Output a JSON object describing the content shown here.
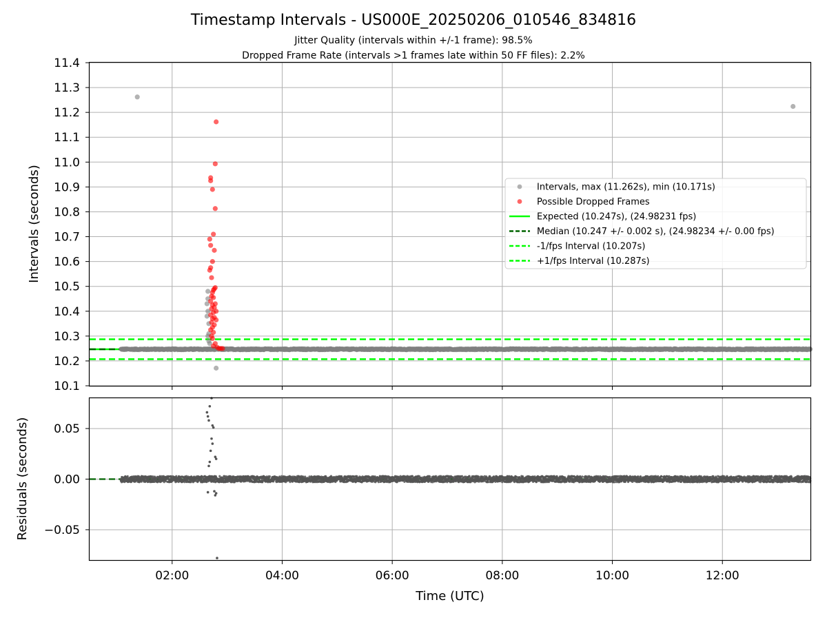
{
  "figure": {
    "title": "Timestamp Intervals - US000E_20250206_010546_834816",
    "subtitle_1": "Jitter Quality (intervals within +/-1 frame): 98.5%",
    "subtitle_2": "Dropped Frame Rate (intervals >1 frames late within 50 FF files): 2.2%"
  },
  "colors": {
    "intervals": "#808080",
    "dropped": "#ff0000",
    "expected": "#00ff00",
    "median": "#006400",
    "fps_band": "#00ff00",
    "residuals": "#555555",
    "grid": "#b0b0b0"
  },
  "chart_data": [
    {
      "type": "scatter",
      "panel": "intervals",
      "xlabel": "",
      "ylabel": "Intervals (seconds)",
      "xlim": [
        "00:30",
        "13:36"
      ],
      "ylim": [
        10.1,
        11.4
      ],
      "yticks": [
        "10.1",
        "10.2",
        "10.3",
        "10.4",
        "10.5",
        "10.6",
        "10.7",
        "10.8",
        "10.9",
        "11.0",
        "11.1",
        "11.2",
        "11.3",
        "11.4"
      ],
      "grid": true,
      "legend_position": "center-right",
      "legend": [
        "Intervals, max (11.262s), min (10.171s)",
        "Possible Dropped Frames",
        "Expected (10.247s), (24.98231 fps)",
        "Median (10.247 +/- 0.002 s), (24.98234 +/- 0.00 fps)",
        "-1/fps Interval (10.207s)",
        "+1/fps Interval (10.287s)"
      ],
      "reference_lines": {
        "expected": 10.247,
        "median": 10.247,
        "minus_1fps": 10.207,
        "plus_1fps": 10.287
      },
      "series": [
        {
          "name": "Intervals, max (11.262s), min (10.171s)",
          "x_range": [
            "01:04",
            "13:36"
          ],
          "typical_y": 10.247,
          "spread": 0.003,
          "points": [
            {
              "x": "01:22",
              "y": 11.262
            },
            {
              "x": "13:17",
              "y": 11.224
            },
            {
              "x": "02:48",
              "y": 10.171
            },
            {
              "x": "02:39",
              "y": 10.48
            },
            {
              "x": "02:39",
              "y": 10.45
            },
            {
              "x": "02:38",
              "y": 10.43
            },
            {
              "x": "02:39",
              "y": 10.4
            },
            {
              "x": "02:38",
              "y": 10.38
            },
            {
              "x": "02:40",
              "y": 10.35
            },
            {
              "x": "02:40",
              "y": 10.31
            },
            {
              "x": "02:39",
              "y": 10.3
            },
            {
              "x": "02:40",
              "y": 10.28
            },
            {
              "x": "02:41",
              "y": 10.27
            }
          ]
        },
        {
          "name": "Possible Dropped Frames",
          "points": [
            {
              "x": "02:48",
              "y": 11.162
            },
            {
              "x": "02:47",
              "y": 10.993
            },
            {
              "x": "02:42",
              "y": 10.937
            },
            {
              "x": "02:42",
              "y": 10.925
            },
            {
              "x": "02:44",
              "y": 10.89
            },
            {
              "x": "02:47",
              "y": 10.813
            },
            {
              "x": "02:45",
              "y": 10.71
            },
            {
              "x": "02:41",
              "y": 10.69
            },
            {
              "x": "02:42",
              "y": 10.665
            },
            {
              "x": "02:46",
              "y": 10.645
            },
            {
              "x": "02:44",
              "y": 10.6
            },
            {
              "x": "02:42",
              "y": 10.575
            },
            {
              "x": "02:41",
              "y": 10.565
            },
            {
              "x": "02:43",
              "y": 10.535
            },
            {
              "x": "02:47",
              "y": 10.495
            },
            {
              "x": "02:46",
              "y": 10.49
            },
            {
              "x": "02:45",
              "y": 10.485
            },
            {
              "x": "02:44",
              "y": 10.475
            },
            {
              "x": "02:43",
              "y": 10.46
            },
            {
              "x": "02:45",
              "y": 10.455
            },
            {
              "x": "02:42",
              "y": 10.44
            },
            {
              "x": "02:47",
              "y": 10.43
            },
            {
              "x": "02:44",
              "y": 10.425
            },
            {
              "x": "02:46",
              "y": 10.415
            },
            {
              "x": "02:43",
              "y": 10.41
            },
            {
              "x": "02:48",
              "y": 10.4
            },
            {
              "x": "02:45",
              "y": 10.395
            },
            {
              "x": "02:42",
              "y": 10.385
            },
            {
              "x": "02:46",
              "y": 10.375
            },
            {
              "x": "02:44",
              "y": 10.37
            },
            {
              "x": "02:48",
              "y": 10.365
            },
            {
              "x": "02:43",
              "y": 10.355
            },
            {
              "x": "02:46",
              "y": 10.345
            },
            {
              "x": "02:44",
              "y": 10.335
            },
            {
              "x": "02:42",
              "y": 10.325
            },
            {
              "x": "02:45",
              "y": 10.315
            },
            {
              "x": "02:43",
              "y": 10.3
            },
            {
              "x": "02:44",
              "y": 10.29
            },
            {
              "x": "02:47",
              "y": 10.27
            },
            {
              "x": "02:45",
              "y": 10.26
            },
            {
              "x": "02:49",
              "y": 10.255
            },
            {
              "x": "02:51",
              "y": 10.25
            },
            {
              "x": "02:53",
              "y": 10.25
            },
            {
              "x": "02:55",
              "y": 10.25
            }
          ]
        }
      ]
    },
    {
      "type": "scatter",
      "panel": "residuals",
      "xlabel": "Time (UTC)",
      "ylabel": "Residuals (seconds)",
      "xlim": [
        "00:30",
        "13:36"
      ],
      "ylim": [
        -0.08,
        0.08
      ],
      "xticks": [
        "02:00",
        "04:00",
        "06:00",
        "08:00",
        "10:00",
        "12:00"
      ],
      "yticks": [
        "0.05",
        "0.00",
        "−0.05"
      ],
      "grid": true,
      "reference_lines": {
        "median": 0.0
      },
      "series": [
        {
          "name": "",
          "x_range": [
            "01:04",
            "13:36"
          ],
          "typical_y": 0.0,
          "spread": 0.003,
          "points": [
            {
              "x": "02:38",
              "y": 0.066
            },
            {
              "x": "02:39",
              "y": 0.062
            },
            {
              "x": "02:40",
              "y": 0.058
            },
            {
              "x": "02:41",
              "y": 0.072
            },
            {
              "x": "02:43",
              "y": 0.08
            },
            {
              "x": "02:44",
              "y": 0.053
            },
            {
              "x": "02:43",
              "y": 0.04
            },
            {
              "x": "02:44",
              "y": 0.035
            },
            {
              "x": "02:45",
              "y": 0.051
            },
            {
              "x": "02:42",
              "y": 0.028
            },
            {
              "x": "02:47",
              "y": 0.022
            },
            {
              "x": "02:48",
              "y": 0.02
            },
            {
              "x": "02:40",
              "y": 0.013
            },
            {
              "x": "02:41",
              "y": 0.017
            },
            {
              "x": "02:39",
              "y": -0.013
            },
            {
              "x": "02:46",
              "y": -0.012
            },
            {
              "x": "02:47",
              "y": -0.016
            },
            {
              "x": "02:48",
              "y": -0.014
            },
            {
              "x": "02:49",
              "y": -0.078
            }
          ]
        }
      ]
    }
  ]
}
